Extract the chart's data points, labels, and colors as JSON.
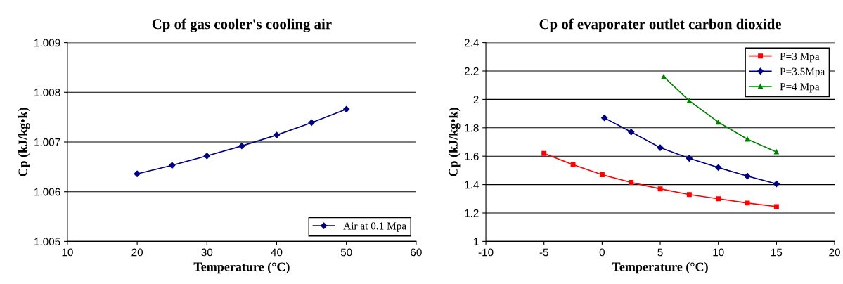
{
  "chart_data": [
    {
      "type": "line",
      "title": "Cp of gas cooler's cooling air",
      "xlabel": "Temperature (°C)",
      "ylabel": "Cp (kJ/kg•k)",
      "xlim": [
        10,
        60
      ],
      "xticks": [
        10,
        20,
        30,
        40,
        50,
        60
      ],
      "ylim": [
        1.005,
        1.009
      ],
      "yticks": [
        1.005,
        1.006,
        1.007,
        1.008,
        1.009
      ],
      "grid": "y",
      "legend": "bottom right",
      "series": [
        {
          "name": "Air at 0.1 Mpa",
          "color": "#000080",
          "marker": "diamond",
          "x": [
            20,
            25,
            30,
            35,
            40,
            45,
            50
          ],
          "values": [
            1.00636,
            1.00653,
            1.00672,
            1.00692,
            1.00714,
            1.00739,
            1.00766
          ]
        }
      ]
    },
    {
      "type": "line",
      "title": "Cp of evaporater outlet carbon dioxide",
      "xlabel": "Temperature (°C)",
      "ylabel": "Cp (kJ/kg•k)",
      "xlim": [
        -10,
        20
      ],
      "xticks": [
        -10,
        -5,
        0,
        5,
        10,
        15,
        20
      ],
      "ylim": [
        1,
        2.4
      ],
      "yticks": [
        1,
        1.2,
        1.4,
        1.6,
        1.8,
        2,
        2.2,
        2.4
      ],
      "grid": "y",
      "legend": "top right",
      "series": [
        {
          "name": "P=3 Mpa",
          "color": "#ff0000",
          "marker": "square",
          "x": [
            -5,
            -2.5,
            0,
            2.5,
            5,
            7.5,
            10,
            12.5,
            15
          ],
          "values": [
            1.62,
            1.54,
            1.47,
            1.415,
            1.37,
            1.33,
            1.3,
            1.27,
            1.245
          ]
        },
        {
          "name": "P=3.5Mpa",
          "color": "#000080",
          "marker": "diamond",
          "x": [
            0.2,
            2.5,
            5,
            7.5,
            10,
            12.5,
            15
          ],
          "values": [
            1.87,
            1.77,
            1.66,
            1.585,
            1.52,
            1.46,
            1.405
          ]
        },
        {
          "name": "P=4 Mpa",
          "color": "#008000",
          "marker": "triangle",
          "x": [
            5.3,
            7.5,
            10,
            12.5,
            15
          ],
          "values": [
            2.16,
            1.99,
            1.84,
            1.72,
            1.63
          ]
        }
      ]
    }
  ]
}
